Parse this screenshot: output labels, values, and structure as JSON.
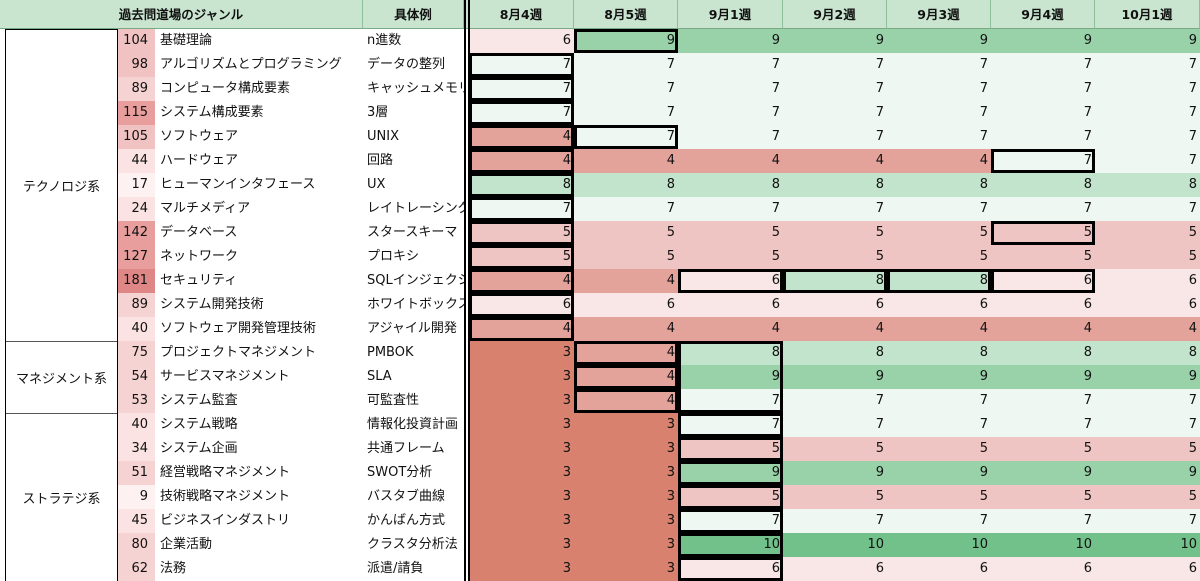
{
  "headers": {
    "genre": "過去問道場のジャンル",
    "example": "具体例",
    "weeks": [
      "8月4週",
      "8月5週",
      "9月1週",
      "9月2週",
      "9月3週",
      "9月4週",
      "10月1週"
    ]
  },
  "categories": [
    {
      "label": "テクノロジ系",
      "start": 0,
      "end": 13
    },
    {
      "label": "マネジメント系",
      "start": 13,
      "end": 16
    },
    {
      "label": "ストラテジ系",
      "start": 16,
      "end": 23
    }
  ],
  "rows": [
    {
      "count": "104",
      "name": "基礎理論",
      "example": "n進数",
      "scores": [
        "6",
        "9",
        "9",
        "9",
        "9",
        "9",
        "9"
      ]
    },
    {
      "count": "98",
      "name": "アルゴリズムとプログラミング",
      "example": "データの整列",
      "scores": [
        "7",
        "7",
        "7",
        "7",
        "7",
        "7",
        "7"
      ]
    },
    {
      "count": "89",
      "name": "コンピュータ構成要素",
      "example": "キャッシュメモリ",
      "scores": [
        "7",
        "7",
        "7",
        "7",
        "7",
        "7",
        "7"
      ]
    },
    {
      "count": "115",
      "name": "システム構成要素",
      "example": "3層",
      "scores": [
        "7",
        "7",
        "7",
        "7",
        "7",
        "7",
        "7"
      ]
    },
    {
      "count": "105",
      "name": "ソフトウェア",
      "example": "UNIX",
      "scores": [
        "4",
        "7",
        "7",
        "7",
        "7",
        "7",
        "7"
      ]
    },
    {
      "count": "44",
      "name": "ハードウェア",
      "example": "回路",
      "scores": [
        "4",
        "4",
        "4",
        "4",
        "4",
        "7",
        "7"
      ]
    },
    {
      "count": "17",
      "name": "ヒューマンインタフェース",
      "example": "UX",
      "scores": [
        "8",
        "8",
        "8",
        "8",
        "8",
        "8",
        "8"
      ]
    },
    {
      "count": "24",
      "name": "マルチメディア",
      "example": "レイトレーシング",
      "scores": [
        "7",
        "7",
        "7",
        "7",
        "7",
        "7",
        "7"
      ]
    },
    {
      "count": "142",
      "name": "データベース",
      "example": "スタースキーマ",
      "scores": [
        "5",
        "5",
        "5",
        "5",
        "5",
        "5",
        "5"
      ]
    },
    {
      "count": "127",
      "name": "ネットワーク",
      "example": "プロキシ",
      "scores": [
        "5",
        "5",
        "5",
        "5",
        "5",
        "5",
        "5"
      ]
    },
    {
      "count": "181",
      "name": "セキュリティ",
      "example": "SQLインジェクション",
      "scores": [
        "4",
        "4",
        "6",
        "8",
        "8",
        "6",
        "6"
      ]
    },
    {
      "count": "89",
      "name": "システム開発技術",
      "example": "ホワイトボックス",
      "scores": [
        "6",
        "6",
        "6",
        "6",
        "6",
        "6",
        "6"
      ]
    },
    {
      "count": "40",
      "name": "ソフトウェア開発管理技術",
      "example": "アジャイル開発",
      "scores": [
        "4",
        "4",
        "4",
        "4",
        "4",
        "4",
        "4"
      ]
    },
    {
      "count": "75",
      "name": "プロジェクトマネジメント",
      "example": "PMBOK",
      "scores": [
        "3",
        "4",
        "8",
        "8",
        "8",
        "8",
        "8"
      ]
    },
    {
      "count": "54",
      "name": "サービスマネジメント",
      "example": "SLA",
      "scores": [
        "3",
        "4",
        "9",
        "9",
        "9",
        "9",
        "9"
      ]
    },
    {
      "count": "53",
      "name": "システム監査",
      "example": "可監査性",
      "scores": [
        "3",
        "4",
        "7",
        "7",
        "7",
        "7",
        "7"
      ]
    },
    {
      "count": "40",
      "name": "システム戦略",
      "example": "情報化投資計画",
      "scores": [
        "3",
        "3",
        "7",
        "7",
        "7",
        "7",
        "7"
      ]
    },
    {
      "count": "34",
      "name": "システム企画",
      "example": "共通フレーム",
      "scores": [
        "3",
        "3",
        "5",
        "5",
        "5",
        "5",
        "5"
      ]
    },
    {
      "count": "51",
      "name": "経営戦略マネジメント",
      "example": "SWOT分析",
      "scores": [
        "3",
        "3",
        "9",
        "9",
        "9",
        "9",
        "9"
      ]
    },
    {
      "count": "9",
      "name": "技術戦略マネジメント",
      "example": "バスタブ曲線",
      "scores": [
        "3",
        "3",
        "5",
        "5",
        "5",
        "5",
        "5"
      ]
    },
    {
      "count": "45",
      "name": "ビジネスインダストリ",
      "example": "かんばん方式",
      "scores": [
        "3",
        "3",
        "7",
        "7",
        "7",
        "7",
        "7"
      ]
    },
    {
      "count": "80",
      "name": "企業活動",
      "example": "クラスタ分析法",
      "scores": [
        "3",
        "3",
        "10",
        "10",
        "10",
        "10",
        "10"
      ]
    },
    {
      "count": "62",
      "name": "法務",
      "example": "派遣/請負",
      "scores": [
        "3",
        "3",
        "6",
        "6",
        "6",
        "6",
        "6"
      ]
    }
  ],
  "score_colors": {
    "3": "#d9816f",
    "4": "#e3a39b",
    "5": "#efc5c3",
    "6": "#f9e6e6",
    "7": "#eef7f2",
    "8": "#c2e4cc",
    "9": "#99d2a9",
    "10": "#72c08a"
  },
  "count_colors": {
    "4": "#fdf1f1",
    "5": "#fbe3e3",
    "6": "#f6d3d3",
    "7": "#f0c2c2",
    "8": "#e99e9e",
    "9": "#df8686"
  }
}
